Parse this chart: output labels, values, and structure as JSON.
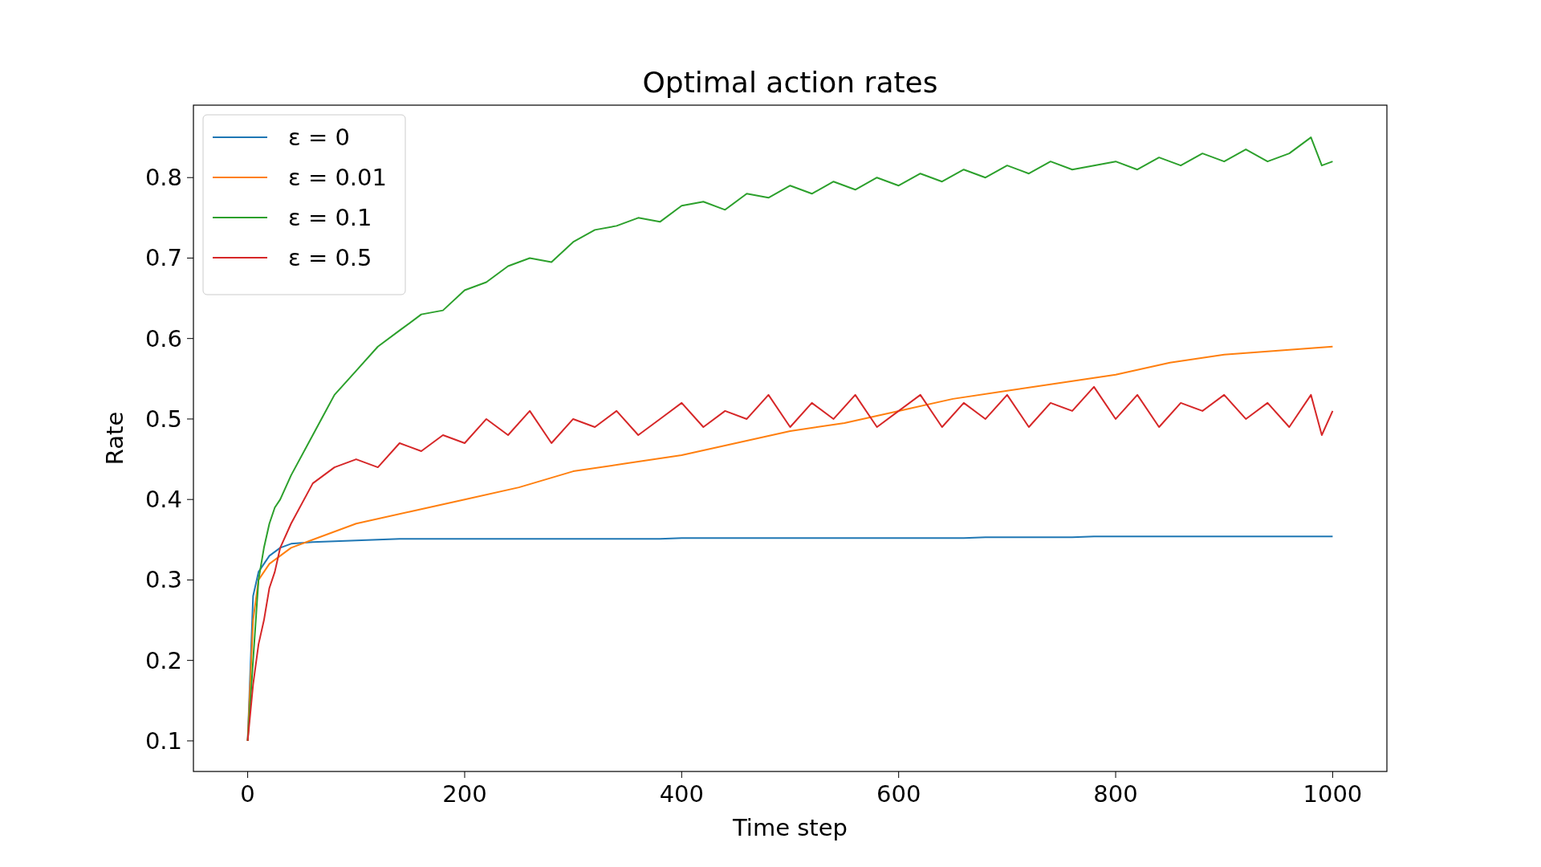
{
  "chart_data": {
    "type": "line",
    "title": "Optimal action rates",
    "xlabel": "Time step",
    "ylabel": "Rate",
    "x": [
      0,
      5,
      10,
      15,
      20,
      25,
      30,
      40,
      60,
      80,
      100,
      120,
      140,
      160,
      180,
      200,
      220,
      240,
      260,
      280,
      300,
      320,
      340,
      360,
      380,
      400,
      420,
      440,
      460,
      480,
      500,
      520,
      540,
      560,
      580,
      600,
      620,
      640,
      660,
      680,
      700,
      720,
      740,
      760,
      780,
      800,
      820,
      840,
      860,
      880,
      900,
      920,
      940,
      960,
      980,
      990,
      1000
    ],
    "series": [
      {
        "name": "ε = 0",
        "color": "#1f77b4",
        "x": [
          0,
          5,
          10,
          20,
          30,
          40,
          60,
          100,
          140,
          380,
          400,
          660,
          680,
          760,
          780,
          1000
        ],
        "values": [
          0.1,
          0.28,
          0.31,
          0.33,
          0.34,
          0.345,
          0.347,
          0.349,
          0.351,
          0.351,
          0.352,
          0.352,
          0.353,
          0.353,
          0.354,
          0.354
        ]
      },
      {
        "name": "ε = 0.01",
        "color": "#ff7f0e",
        "x": [
          0,
          5,
          10,
          20,
          40,
          60,
          100,
          150,
          200,
          250,
          300,
          350,
          400,
          450,
          500,
          550,
          600,
          650,
          700,
          750,
          800,
          850,
          900,
          950,
          1000
        ],
        "values": [
          0.1,
          0.25,
          0.3,
          0.32,
          0.34,
          0.35,
          0.37,
          0.385,
          0.4,
          0.415,
          0.435,
          0.445,
          0.455,
          0.47,
          0.485,
          0.495,
          0.51,
          0.525,
          0.535,
          0.545,
          0.555,
          0.57,
          0.58,
          0.585,
          0.59
        ]
      },
      {
        "name": "ε = 0.1",
        "color": "#2ca02c",
        "values": [
          0.1,
          0.2,
          0.3,
          0.34,
          0.37,
          0.39,
          0.4,
          0.43,
          0.48,
          0.53,
          0.56,
          0.59,
          0.61,
          0.63,
          0.635,
          0.66,
          0.67,
          0.69,
          0.7,
          0.695,
          0.72,
          0.735,
          0.74,
          0.75,
          0.745,
          0.765,
          0.77,
          0.76,
          0.78,
          0.775,
          0.79,
          0.78,
          0.795,
          0.785,
          0.8,
          0.79,
          0.805,
          0.795,
          0.81,
          0.8,
          0.815,
          0.805,
          0.82,
          0.81,
          0.815,
          0.82,
          0.81,
          0.825,
          0.815,
          0.83,
          0.82,
          0.835,
          0.82,
          0.83,
          0.85,
          0.815,
          0.82
        ]
      },
      {
        "name": "ε = 0.5",
        "color": "#d62728",
        "values": [
          0.1,
          0.17,
          0.22,
          0.25,
          0.29,
          0.31,
          0.34,
          0.37,
          0.42,
          0.44,
          0.45,
          0.44,
          0.47,
          0.46,
          0.48,
          0.47,
          0.5,
          0.48,
          0.51,
          0.47,
          0.5,
          0.49,
          0.51,
          0.48,
          0.5,
          0.52,
          0.49,
          0.51,
          0.5,
          0.53,
          0.49,
          0.52,
          0.5,
          0.53,
          0.49,
          0.51,
          0.53,
          0.49,
          0.52,
          0.5,
          0.53,
          0.49,
          0.52,
          0.51,
          0.54,
          0.5,
          0.53,
          0.49,
          0.52,
          0.51,
          0.53,
          0.5,
          0.52,
          0.49,
          0.53,
          0.48,
          0.51
        ]
      }
    ],
    "xlim": [
      -50,
      1050
    ],
    "xticks": [
      0,
      200,
      400,
      600,
      800,
      1000
    ],
    "ylim": [
      0.062,
      0.89
    ],
    "yticks": [
      0.1,
      0.2,
      0.3,
      0.4,
      0.5,
      0.6,
      0.7,
      0.8
    ],
    "legend": "top left",
    "grid": false
  }
}
